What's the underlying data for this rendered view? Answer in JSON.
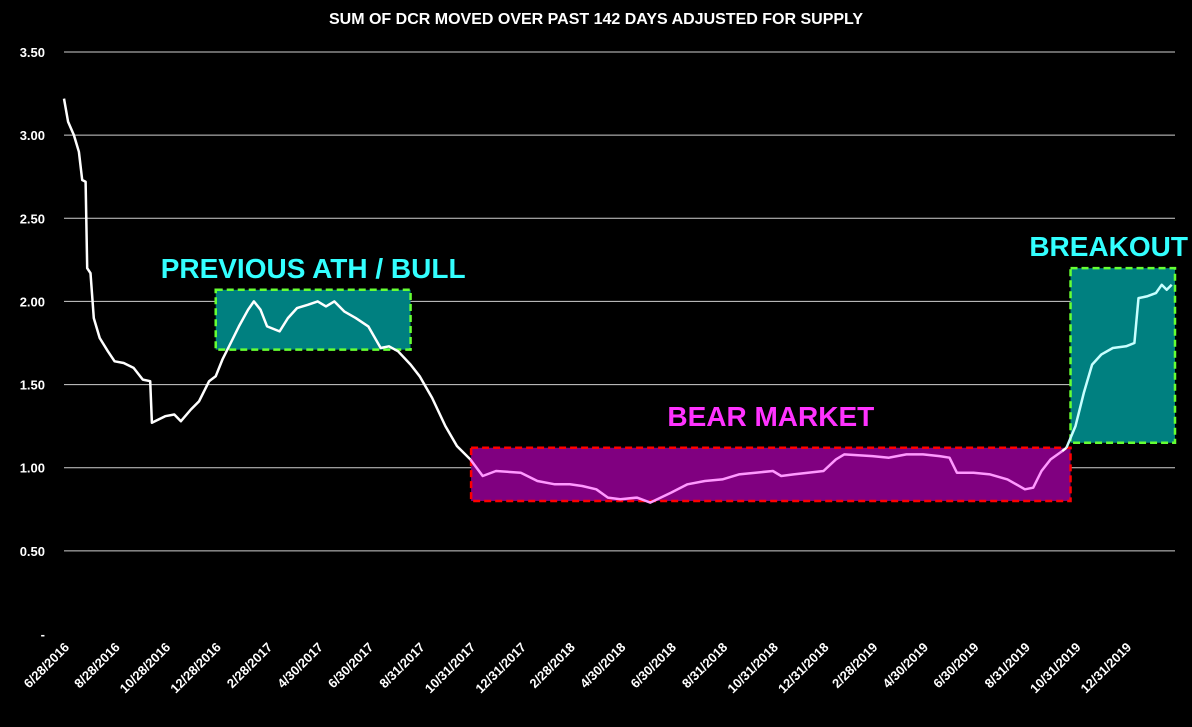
{
  "chart_data": {
    "type": "line",
    "title": "SUM OF DCR MOVED OVER PAST 142 DAYS ADJUSTED FOR SUPPLY",
    "xlabel": "",
    "ylabel": "",
    "ylim": [
      0,
      3.5
    ],
    "grid": true,
    "y_ticks": [
      {
        "value": 0,
        "label": "-"
      },
      {
        "value": 0.5,
        "label": "0.50"
      },
      {
        "value": 1.0,
        "label": "1.00"
      },
      {
        "value": 1.5,
        "label": "1.50"
      },
      {
        "value": 2.0,
        "label": "2.00"
      },
      {
        "value": 2.5,
        "label": "2.50"
      },
      {
        "value": 3.0,
        "label": "3.00"
      },
      {
        "value": 3.5,
        "label": "3.50"
      }
    ],
    "x_ticks": [
      "6/28/2016",
      "8/28/2016",
      "10/28/2016",
      "12/28/2016",
      "2/28/2017",
      "4/30/2017",
      "6/30/2017",
      "8/31/2017",
      "10/31/2017",
      "12/31/2017",
      "2/28/2018",
      "4/30/2018",
      "6/30/2018",
      "8/31/2018",
      "10/31/2018",
      "12/31/2018",
      "2/28/2019",
      "4/30/2019",
      "6/30/2019",
      "8/31/2019",
      "10/31/2019",
      "12/31/2019"
    ],
    "series": [
      {
        "color": "#ffffff",
        "points": [
          [
            "6/28/2016",
            3.22
          ],
          [
            "7/3/2016",
            3.08
          ],
          [
            "7/10/2016",
            3.0
          ],
          [
            "7/16/2016",
            2.9
          ],
          [
            "7/20/2016",
            2.73
          ],
          [
            "7/24/2016",
            2.72
          ],
          [
            "7/26/2016",
            2.2
          ],
          [
            "7/30/2016",
            2.17
          ],
          [
            "8/3/2016",
            1.9
          ],
          [
            "8/10/2016",
            1.78
          ],
          [
            "8/20/2016",
            1.7
          ],
          [
            "8/28/2016",
            1.64
          ],
          [
            "9/8/2016",
            1.63
          ],
          [
            "9/20/2016",
            1.6
          ],
          [
            "10/1/2016",
            1.53
          ],
          [
            "10/10/2016",
            1.52
          ],
          [
            "10/12/2016",
            1.27
          ],
          [
            "10/20/2016",
            1.29
          ],
          [
            "10/28/2016",
            1.31
          ],
          [
            "11/8/2016",
            1.32
          ],
          [
            "11/16/2016",
            1.28
          ],
          [
            "11/28/2016",
            1.35
          ],
          [
            "12/8/2016",
            1.4
          ],
          [
            "12/20/2016",
            1.52
          ],
          [
            "12/28/2016",
            1.55
          ],
          [
            "1/5/2017",
            1.65
          ],
          [
            "1/15/2017",
            1.75
          ],
          [
            "1/25/2017",
            1.85
          ],
          [
            "2/5/2017",
            1.95
          ],
          [
            "2/12/2017",
            2.0
          ],
          [
            "2/20/2017",
            1.95
          ],
          [
            "2/28/2017",
            1.85
          ],
          [
            "3/15/2017",
            1.82
          ],
          [
            "3/25/2017",
            1.9
          ],
          [
            "4/5/2017",
            1.96
          ],
          [
            "4/18/2017",
            1.98
          ],
          [
            "4/30/2017",
            2.0
          ],
          [
            "5/10/2017",
            1.97
          ],
          [
            "5/20/2017",
            2.0
          ],
          [
            "6/1/2017",
            1.94
          ],
          [
            "6/15/2017",
            1.9
          ],
          [
            "6/30/2017",
            1.85
          ],
          [
            "7/15/2017",
            1.72
          ],
          [
            "7/25/2017",
            1.73
          ],
          [
            "8/5/2017",
            1.7
          ],
          [
            "8/20/2017",
            1.62
          ],
          [
            "8/31/2017",
            1.55
          ],
          [
            "9/15/2017",
            1.42
          ],
          [
            "10/1/2017",
            1.25
          ],
          [
            "10/15/2017",
            1.13
          ],
          [
            "10/31/2017",
            1.05
          ]
        ]
      },
      {
        "color": "#ff99ff",
        "points": [
          [
            "10/31/2017",
            1.05
          ],
          [
            "11/15/2017",
            0.95
          ],
          [
            "12/1/2017",
            0.98
          ],
          [
            "12/31/2017",
            0.97
          ],
          [
            "1/20/2018",
            0.92
          ],
          [
            "2/10/2018",
            0.9
          ],
          [
            "2/28/2018",
            0.9
          ],
          [
            "3/15/2018",
            0.89
          ],
          [
            "4/1/2018",
            0.87
          ],
          [
            "4/15/2018",
            0.82
          ],
          [
            "4/30/2018",
            0.81
          ],
          [
            "5/20/2018",
            0.82
          ],
          [
            "6/5/2018",
            0.79
          ],
          [
            "6/30/2018",
            0.85
          ],
          [
            "7/20/2018",
            0.9
          ],
          [
            "8/10/2018",
            0.92
          ],
          [
            "8/31/2018",
            0.93
          ],
          [
            "9/20/2018",
            0.96
          ],
          [
            "10/10/2018",
            0.97
          ],
          [
            "10/31/2018",
            0.98
          ],
          [
            "11/10/2018",
            0.95
          ],
          [
            "11/25/2018",
            0.96
          ],
          [
            "12/31/2018",
            0.98
          ],
          [
            "1/15/2019",
            1.05
          ],
          [
            "1/25/2019",
            1.08
          ],
          [
            "2/28/2019",
            1.07
          ],
          [
            "3/20/2019",
            1.06
          ],
          [
            "4/10/2019",
            1.08
          ],
          [
            "4/30/2019",
            1.08
          ],
          [
            "5/20/2019",
            1.07
          ],
          [
            "6/1/2019",
            1.06
          ],
          [
            "6/10/2019",
            0.97
          ],
          [
            "6/30/2019",
            0.97
          ],
          [
            "7/20/2019",
            0.96
          ],
          [
            "8/10/2019",
            0.93
          ],
          [
            "8/31/2019",
            0.87
          ],
          [
            "9/10/2019",
            0.88
          ],
          [
            "9/20/2019",
            0.98
          ],
          [
            "10/1/2019",
            1.05
          ],
          [
            "10/15/2019",
            1.1
          ]
        ]
      },
      {
        "color": "#ffffff",
        "points": [
          [
            "10/15/2019",
            1.1
          ],
          [
            "10/20/2019",
            1.12
          ]
        ]
      },
      {
        "color": "#c8ffff",
        "points": [
          [
            "10/20/2019",
            1.12
          ],
          [
            "10/31/2019",
            1.25
          ],
          [
            "11/10/2019",
            1.45
          ],
          [
            "11/20/2019",
            1.62
          ],
          [
            "12/1/2019",
            1.68
          ],
          [
            "12/15/2019",
            1.72
          ],
          [
            "12/31/2019",
            1.73
          ],
          [
            "1/10/2020",
            1.75
          ],
          [
            "1/15/2020",
            2.02
          ],
          [
            "1/25/2020",
            2.03
          ],
          [
            "2/5/2020",
            2.05
          ],
          [
            "2/12/2020",
            2.1
          ],
          [
            "2/18/2020",
            2.07
          ],
          [
            "2/24/2020",
            2.1
          ]
        ]
      }
    ],
    "annotations": [
      {
        "text": "PREVIOUS ATH / BULL",
        "text_color": "#33ffff",
        "fill": "#008080",
        "border": "#66ff33",
        "x_range": [
          "12/28/2016",
          "8/20/2017"
        ],
        "y_range": [
          1.71,
          2.07
        ]
      },
      {
        "text": "BEAR MARKET",
        "text_color": "#ff33ff",
        "fill": "#800080",
        "border": "#ff0000",
        "x_range": [
          "11/1/2017",
          "10/25/2019"
        ],
        "y_range": [
          0.8,
          1.12
        ]
      },
      {
        "text": "BREAKOUT",
        "text_color": "#33ffff",
        "fill": "#008080",
        "border": "#66ff33",
        "x_range": [
          "10/25/2019",
          "2/28/2020"
        ],
        "y_range": [
          1.15,
          2.2
        ]
      }
    ]
  }
}
